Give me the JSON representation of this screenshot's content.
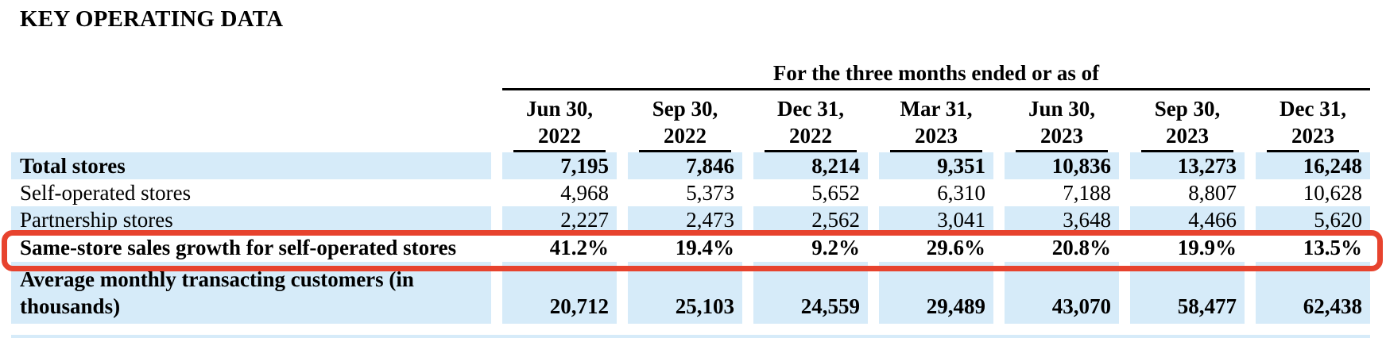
{
  "title": "KEY OPERATING DATA",
  "table": {
    "group_header": "For the three months ended or as of",
    "columns": [
      {
        "line1": "Jun 30,",
        "line2": "2022"
      },
      {
        "line1": "Sep 30,",
        "line2": "2022"
      },
      {
        "line1": "Dec 31,",
        "line2": "2022"
      },
      {
        "line1": "Mar 31,",
        "line2": "2023"
      },
      {
        "line1": "Jun 30,",
        "line2": "2023"
      },
      {
        "line1": "Sep 30,",
        "line2": "2023"
      },
      {
        "line1": "Dec 31,",
        "line2": "2023"
      }
    ],
    "rows": [
      {
        "label": "Total stores",
        "values": [
          "7,195",
          "7,846",
          "8,214",
          "9,351",
          "10,836",
          "13,273",
          "16,248"
        ]
      },
      {
        "label": "Self-operated stores",
        "values": [
          "4,968",
          "5,373",
          "5,652",
          "6,310",
          "7,188",
          "8,807",
          "10,628"
        ]
      },
      {
        "label": "Partnership stores",
        "values": [
          "2,227",
          "2,473",
          "2,562",
          "3,041",
          "3,648",
          "4,466",
          "5,620"
        ]
      },
      {
        "label": "Same-store sales growth for self-operated stores",
        "values": [
          "41.2%",
          "19.4%",
          "9.2%",
          "29.6%",
          "20.8%",
          "19.9%",
          "13.5%"
        ]
      },
      {
        "label": "Average monthly transacting customers (in thousands)",
        "values": [
          "20,712",
          "25,103",
          "24,559",
          "29,489",
          "43,070",
          "58,477",
          "62,438"
        ]
      }
    ]
  },
  "annotation": {
    "shape": "rounded-rectangle",
    "purpose": "highlights same-store sales growth row",
    "border_color": "#e7432e"
  },
  "colors": {
    "row_shade_blue": "#d6ebf9",
    "text": "#000000",
    "background": "#ffffff"
  }
}
